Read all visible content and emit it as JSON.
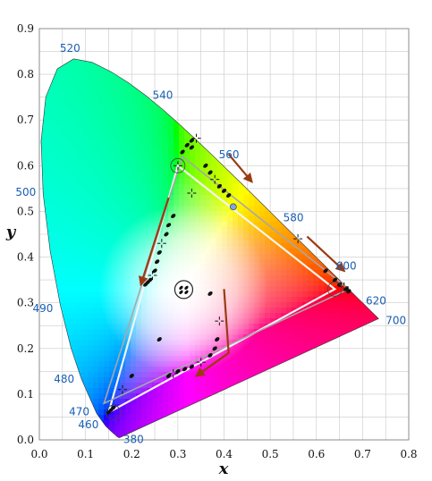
{
  "chart_data": {
    "type": "scatter",
    "title": "",
    "xlabel": "x",
    "ylabel": "y",
    "xlim": [
      0,
      0.8
    ],
    "ylim": [
      0,
      0.9
    ],
    "grid": true,
    "x_ticks": [
      "0.0",
      "0.1",
      "0.2",
      "0.3",
      "0.4",
      "0.5",
      "0.6",
      "0.7",
      "0.8"
    ],
    "y_ticks": [
      "0.0",
      "0.1",
      "0.2",
      "0.3",
      "0.4",
      "0.5",
      "0.6",
      "0.7",
      "0.8",
      "0.9"
    ],
    "spectral_locus": [
      [
        0.1741,
        0.005
      ],
      [
        0.174,
        0.005
      ],
      [
        0.1738,
        0.0049
      ],
      [
        0.173,
        0.0048
      ],
      [
        0.1714,
        0.0051
      ],
      [
        0.1689,
        0.0069
      ],
      [
        0.1644,
        0.0109
      ],
      [
        0.1566,
        0.0177
      ],
      [
        0.144,
        0.0297
      ],
      [
        0.1241,
        0.0578
      ],
      [
        0.0913,
        0.1327
      ],
      [
        0.0687,
        0.2007
      ],
      [
        0.0454,
        0.295
      ],
      [
        0.0235,
        0.4127
      ],
      [
        0.0082,
        0.5384
      ],
      [
        0.0039,
        0.6548
      ],
      [
        0.0139,
        0.7502
      ],
      [
        0.0389,
        0.812
      ],
      [
        0.0743,
        0.8338
      ],
      [
        0.1142,
        0.8262
      ],
      [
        0.1547,
        0.8059
      ],
      [
        0.1929,
        0.7816
      ],
      [
        0.2296,
        0.7543
      ],
      [
        0.2658,
        0.7243
      ],
      [
        0.3016,
        0.6923
      ],
      [
        0.3373,
        0.6589
      ],
      [
        0.3731,
        0.6245
      ],
      [
        0.4087,
        0.5896
      ],
      [
        0.4441,
        0.5547
      ],
      [
        0.4788,
        0.5202
      ],
      [
        0.5125,
        0.4866
      ],
      [
        0.5448,
        0.4544
      ],
      [
        0.5752,
        0.4242
      ],
      [
        0.6029,
        0.3965
      ],
      [
        0.627,
        0.3725
      ],
      [
        0.6482,
        0.3514
      ],
      [
        0.6658,
        0.334
      ],
      [
        0.6801,
        0.3197
      ],
      [
        0.6915,
        0.3083
      ],
      [
        0.7006,
        0.2993
      ],
      [
        0.7079,
        0.292
      ],
      [
        0.714,
        0.2859
      ],
      [
        0.719,
        0.2809
      ],
      [
        0.723,
        0.277
      ],
      [
        0.726,
        0.274
      ],
      [
        0.7283,
        0.2717
      ],
      [
        0.73,
        0.27
      ],
      [
        0.7347,
        0.2653
      ]
    ],
    "wavelength_labels": [
      {
        "label": "380",
        "x": 0.1741,
        "y": 0.005
      },
      {
        "label": "460",
        "x": 0.144,
        "y": 0.0297
      },
      {
        "label": "470",
        "x": 0.1241,
        "y": 0.0578
      },
      {
        "label": "480",
        "x": 0.0913,
        "y": 0.1327
      },
      {
        "label": "490",
        "x": 0.0454,
        "y": 0.295
      },
      {
        "label": "500",
        "x": 0.0082,
        "y": 0.5384
      },
      {
        "label": "520",
        "x": 0.0743,
        "y": 0.8338
      },
      {
        "label": "540",
        "x": 0.2296,
        "y": 0.7543
      },
      {
        "label": "560",
        "x": 0.3731,
        "y": 0.6245
      },
      {
        "label": "580",
        "x": 0.5125,
        "y": 0.4866
      },
      {
        "label": "600",
        "x": 0.627,
        "y": 0.3725
      },
      {
        "label": "620",
        "x": 0.6915,
        "y": 0.3083
      },
      {
        "label": "700",
        "x": 0.7347,
        "y": 0.2653
      }
    ],
    "series": [
      {
        "polygon": [
          [
            0.64,
            0.33
          ],
          [
            0.3,
            0.6
          ],
          [
            0.15,
            0.06
          ]
        ],
        "points": [
          [
            0.3,
            0.6
          ],
          [
            0.31,
            0.63
          ],
          [
            0.32,
            0.645
          ],
          [
            0.33,
            0.655
          ],
          [
            0.34,
            0.66
          ],
          [
            0.33,
            0.64
          ],
          [
            0.36,
            0.6
          ],
          [
            0.37,
            0.585
          ],
          [
            0.38,
            0.57
          ],
          [
            0.39,
            0.555
          ],
          [
            0.4,
            0.545
          ],
          [
            0.41,
            0.535
          ],
          [
            0.33,
            0.54
          ],
          [
            0.29,
            0.49
          ],
          [
            0.28,
            0.47
          ],
          [
            0.275,
            0.45
          ],
          [
            0.265,
            0.43
          ],
          [
            0.26,
            0.41
          ],
          [
            0.255,
            0.39
          ],
          [
            0.25,
            0.37
          ],
          [
            0.245,
            0.36
          ],
          [
            0.24,
            0.35
          ],
          [
            0.235,
            0.345
          ],
          [
            0.23,
            0.34
          ],
          [
            0.56,
            0.44
          ],
          [
            0.62,
            0.37
          ],
          [
            0.64,
            0.35
          ],
          [
            0.65,
            0.34
          ],
          [
            0.66,
            0.335
          ],
          [
            0.665,
            0.33
          ],
          [
            0.67,
            0.325
          ],
          [
            0.37,
            0.32
          ],
          [
            0.39,
            0.26
          ],
          [
            0.385,
            0.22
          ],
          [
            0.38,
            0.2
          ],
          [
            0.37,
            0.185
          ],
          [
            0.35,
            0.17
          ],
          [
            0.33,
            0.16
          ],
          [
            0.315,
            0.155
          ],
          [
            0.3,
            0.15
          ],
          [
            0.29,
            0.145
          ],
          [
            0.28,
            0.14
          ],
          [
            0.26,
            0.22
          ],
          [
            0.2,
            0.14
          ],
          [
            0.18,
            0.11
          ],
          [
            0.155,
            0.065
          ],
          [
            0.15,
            0.06
          ],
          [
            0.16,
            0.07
          ]
        ]
      },
      {
        "polygon": [
          [
            0.67,
            0.33
          ],
          [
            0.31,
            0.62
          ],
          [
            0.14,
            0.08
          ]
        ],
        "points": []
      }
    ],
    "markers": {
      "white_point": {
        "x": 0.3127,
        "y": 0.329
      },
      "open_circles": [
        [
          0.3,
          0.6
        ],
        [
          0.64,
          0.33
        ],
        [
          0.16,
          0.06
        ]
      ],
      "blue_dot": {
        "x": 0.42,
        "y": 0.51
      }
    },
    "arrows": [
      [
        [
          0.28,
          0.53
        ],
        [
          0.22,
          0.34
        ]
      ],
      [
        [
          0.41,
          0.625
        ],
        [
          0.46,
          0.565
        ]
      ],
      [
        [
          0.58,
          0.445
        ],
        [
          0.66,
          0.37
        ]
      ],
      [
        [
          0.4,
          0.33
        ],
        [
          0.41,
          0.19
        ],
        [
          0.34,
          0.14
        ]
      ]
    ],
    "colors": {
      "polygon_a": "#f4f4f4",
      "polygon_b": "#a8a8a8",
      "arrow": "#9b3a12",
      "wavelength_label": "#1a5fb4",
      "grid": "#c9c9c9",
      "blue_dot": "#7fa6e0"
    }
  }
}
